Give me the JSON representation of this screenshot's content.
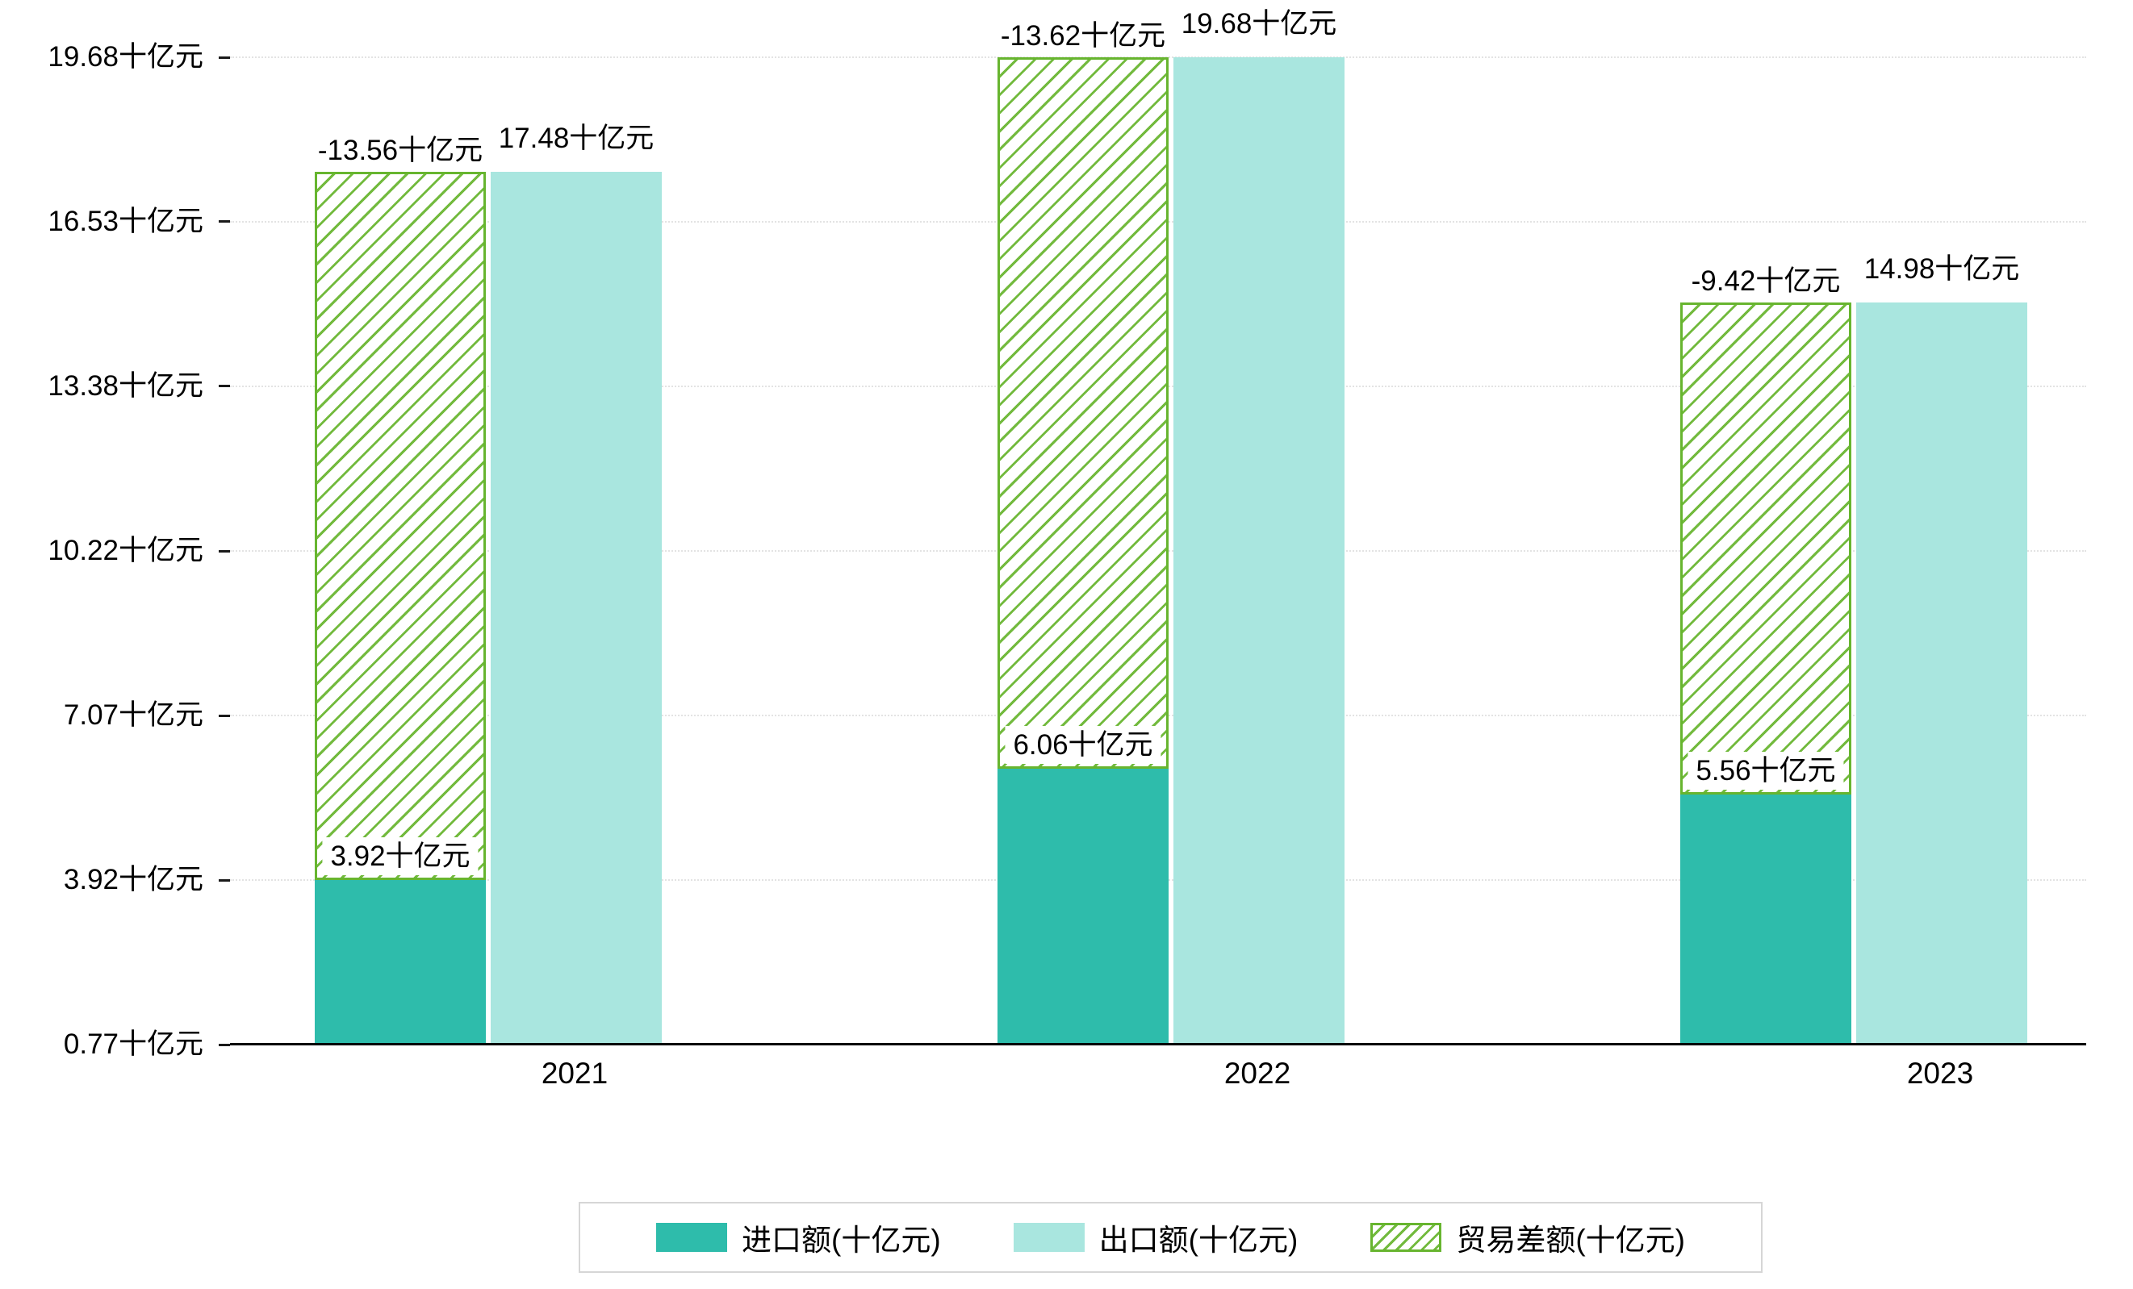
{
  "chart_data": {
    "type": "bar",
    "title": "",
    "unit": "十亿元",
    "categories": [
      "2021",
      "2022",
      "2023"
    ],
    "series": [
      {
        "name": "进口额(十亿元)",
        "color": "#2ebcab",
        "values": [
          3.92,
          6.06,
          5.56
        ],
        "labels": [
          "3.92十亿元",
          "6.06十亿元",
          "5.56十亿元"
        ]
      },
      {
        "name": "出口额(十亿元)",
        "color": "#a9e6df",
        "values": [
          17.48,
          19.68,
          14.98
        ],
        "labels": [
          "17.48十亿元",
          "19.68十亿元",
          "14.98十亿元"
        ]
      },
      {
        "name": "贸易差额(十亿元)",
        "color": "#72ba3d",
        "style": "hatched",
        "render": "floating-bar-spanning-import-to-export",
        "values": [
          -13.56,
          -13.62,
          -9.42
        ],
        "labels": [
          "-13.56十亿元",
          "-13.62十亿元",
          "-9.42十亿元"
        ]
      }
    ],
    "ylim": [
      0.77,
      19.68
    ],
    "yticks": [
      {
        "value": 0.77,
        "label": "0.77十亿元"
      },
      {
        "value": 3.92,
        "label": "3.92十亿元"
      },
      {
        "value": 7.07,
        "label": "7.07十亿元"
      },
      {
        "value": 10.22,
        "label": "10.22十亿元"
      },
      {
        "value": 13.38,
        "label": "13.38十亿元"
      },
      {
        "value": 16.53,
        "label": "16.53十亿元"
      },
      {
        "value": 19.68,
        "label": "19.68十亿元"
      }
    ],
    "grid": "horizontal-dotted",
    "legend_position": "bottom"
  }
}
